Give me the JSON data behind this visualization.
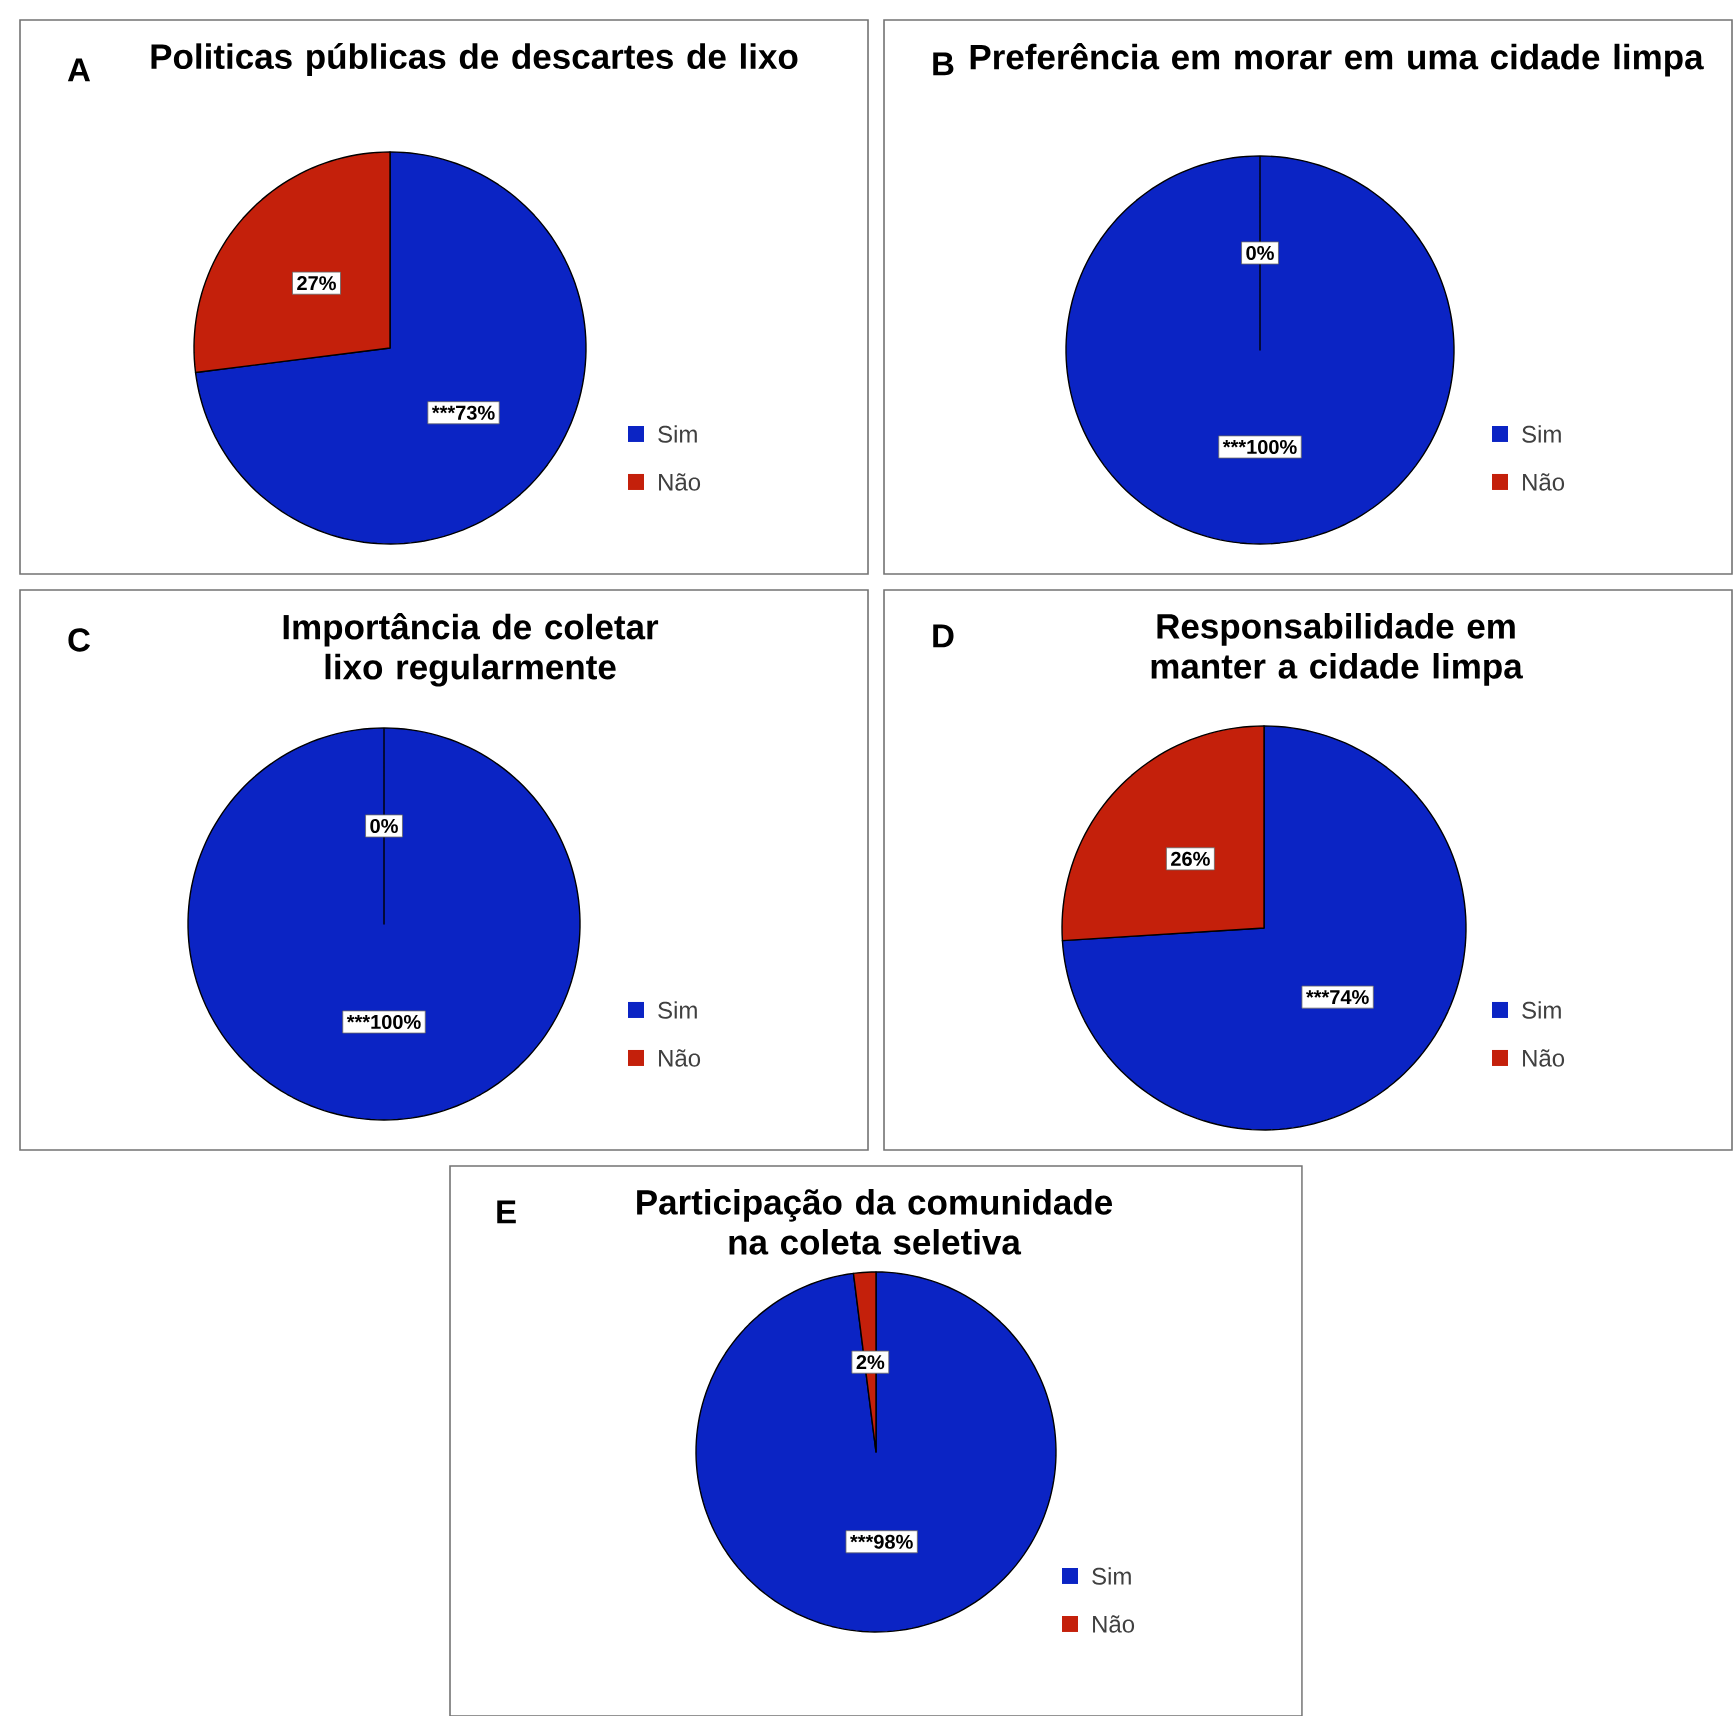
{
  "chart_data": [
    {
      "type": "pie",
      "title": "Politicas públicas de descartes de lixo",
      "categories": [
        "Sim",
        "Não"
      ],
      "values": [
        73,
        27
      ],
      "colors": [
        "#0b24c4",
        "#c4200b"
      ],
      "value_labels": [
        "***73%",
        "27%"
      ],
      "legend": "bottom right",
      "annotations": [
        "A"
      ]
    },
    {
      "type": "pie",
      "title": "Preferência em morar em uma cidade limpa",
      "categories": [
        "Sim",
        "Não"
      ],
      "values": [
        100,
        0
      ],
      "colors": [
        "#0b24c4",
        "#c4200b"
      ],
      "value_labels": [
        "***100%",
        "0%"
      ],
      "legend": "bottom right",
      "annotations": [
        "B"
      ]
    },
    {
      "type": "pie",
      "title": "Importância de coletar lixo regularmente",
      "categories": [
        "Sim",
        "Não"
      ],
      "values": [
        100,
        0
      ],
      "colors": [
        "#0b24c4",
        "#c4200b"
      ],
      "value_labels": [
        "***100%",
        "0%"
      ],
      "legend": "bottom right",
      "annotations": [
        "C"
      ]
    },
    {
      "type": "pie",
      "title": "Responsabilidade em manter a cidade limpa",
      "categories": [
        "Sim",
        "Não"
      ],
      "values": [
        74,
        26
      ],
      "colors": [
        "#0b24c4",
        "#c4200b"
      ],
      "value_labels": [
        "***74%",
        "26%"
      ],
      "legend": "bottom right",
      "annotations": [
        "D"
      ]
    },
    {
      "type": "pie",
      "title": "Participação da comunidade na coleta seletiva",
      "categories": [
        "Sim",
        "Não"
      ],
      "values": [
        98,
        2
      ],
      "colors": [
        "#0b24c4",
        "#c4200b"
      ],
      "value_labels": [
        "***98%",
        "2%"
      ],
      "legend": "bottom right",
      "annotations": [
        "E"
      ]
    }
  ]
}
